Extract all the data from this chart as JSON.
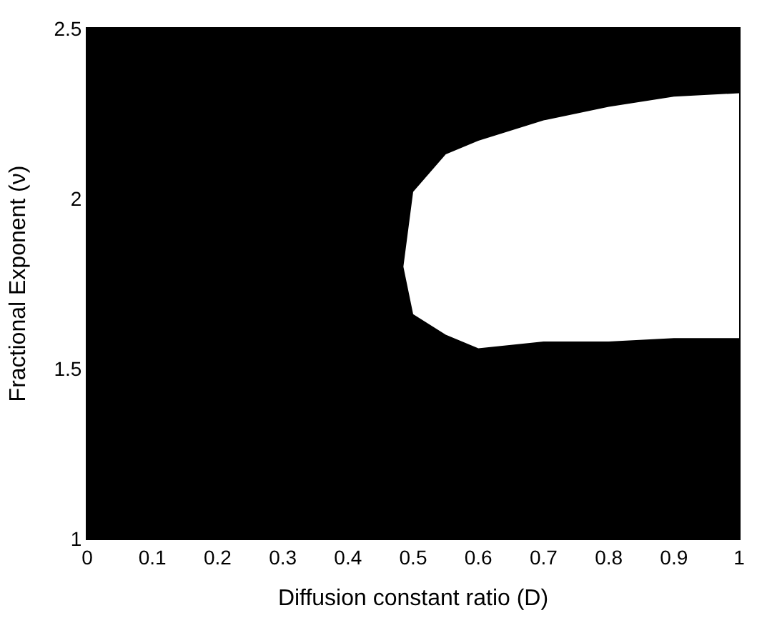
{
  "chart_data": {
    "type": "area",
    "xlabel": "Diffusion constant ratio (D)",
    "ylabel": "Fractional Exponent (ν)",
    "xlim": [
      0,
      1
    ],
    "ylim": [
      1,
      2.5
    ],
    "xticks": [
      0,
      0.1,
      0.2,
      0.3,
      0.4,
      0.5,
      0.6,
      0.7,
      0.8,
      0.9,
      1
    ],
    "yticks": [
      1,
      1.5,
      2,
      2.5
    ],
    "grid": false,
    "bands": [
      {
        "axis": "x",
        "from": 0,
        "to": 1,
        "color": "#000000"
      }
    ],
    "series": [
      {
        "color": "#ffffff",
        "x": [
          1,
          0.9,
          0.8,
          0.7,
          0.65,
          0.6,
          0.55,
          0.5,
          0.485,
          0.5,
          0.55,
          0.6,
          0.65,
          0.7,
          0.8,
          0.9,
          1
        ],
        "values": [
          2.31,
          2.3,
          2.27,
          2.23,
          2.2,
          2.17,
          2.13,
          2.02,
          1.8,
          1.66,
          1.6,
          1.56,
          1.57,
          1.58,
          1.58,
          1.59,
          1.59
        ]
      }
    ]
  }
}
